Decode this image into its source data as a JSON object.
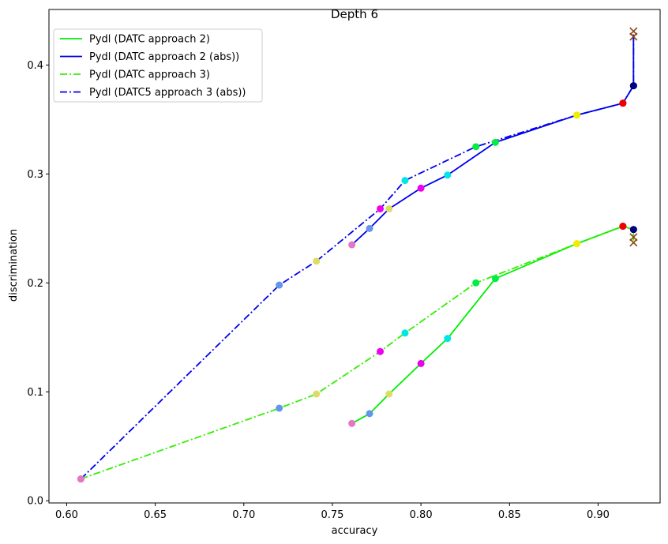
{
  "chart_data": {
    "type": "line",
    "title": "Depth 6",
    "xlabel": "accuracy",
    "ylabel": "discrimination",
    "xlim": [
      0.59,
      0.935
    ],
    "ylim": [
      -0.002,
      0.451
    ],
    "xticks": [
      0.6,
      0.65,
      0.7,
      0.75,
      0.8,
      0.85,
      0.9
    ],
    "xtick_labels": [
      "0.60",
      "0.65",
      "0.70",
      "0.75",
      "0.80",
      "0.85",
      "0.90"
    ],
    "yticks": [
      0.0,
      0.1,
      0.2,
      0.3,
      0.4
    ],
    "ytick_labels": [
      "0.0",
      "0.1",
      "0.2",
      "0.3",
      "0.4"
    ],
    "grid": false,
    "legend_position": "top-left",
    "series": [
      {
        "name": "Pydl (DATC approach 2)",
        "color": "#00ee00",
        "style": "solid",
        "x": [
          0.761,
          0.771,
          0.782,
          0.8,
          0.815,
          0.842,
          0.888,
          0.914,
          0.92
        ],
        "y": [
          0.071,
          0.08,
          0.098,
          0.126,
          0.149,
          0.204,
          0.236,
          0.252,
          0.249
        ],
        "marker_colors": [
          "#e377c2",
          "#6495ed",
          "#dddd66",
          "#ee00ee",
          "#00e5e5",
          "#00ee44",
          "#eeee00",
          "#ee0000",
          "#000080"
        ]
      },
      {
        "name": "Pydl (DATC approach 2 (abs))",
        "color": "#0000ee",
        "style": "solid",
        "x": [
          0.761,
          0.771,
          0.782,
          0.8,
          0.815,
          0.842,
          0.888,
          0.914,
          0.92,
          0.92
        ],
        "y": [
          0.235,
          0.25,
          0.268,
          0.287,
          0.299,
          0.329,
          0.354,
          0.365,
          0.381,
          0.428
        ],
        "marker_colors": [
          "#e377c2",
          "#6495ed",
          "#dddd66",
          "#ee00ee",
          "#00e5e5",
          "#00ee44",
          "#eeee00",
          "#ee0000",
          "#000080",
          "#8b4513"
        ]
      },
      {
        "name": "Pydl (DATC approach 3)",
        "color": "#33ee00",
        "style": "dashdot",
        "x": [
          0.608,
          0.72,
          0.741,
          0.777,
          0.791,
          0.831,
          0.888,
          0.914,
          0.92,
          0.92
        ],
        "y": [
          0.02,
          0.085,
          0.098,
          0.137,
          0.154,
          0.2,
          0.236,
          0.252,
          0.249,
          0.237
        ],
        "marker_colors": [
          "#e377c2",
          "#6495ed",
          "#dddd66",
          "#ee00ee",
          "#00e5e5",
          "#00ee44",
          "#eeee00",
          "#ee0000",
          "#000080",
          "#8b4513"
        ]
      },
      {
        "name": "Pydl (DATC5 approach 3 (abs))",
        "color": "#0000ee",
        "style": "dashdot",
        "x": [
          0.608,
          0.72,
          0.741,
          0.777,
          0.791,
          0.831,
          0.888,
          0.914,
          0.92,
          0.92
        ],
        "y": [
          0.02,
          0.198,
          0.22,
          0.268,
          0.294,
          0.325,
          0.354,
          0.365,
          0.381,
          0.428
        ],
        "marker_colors": [
          "#e377c2",
          "#6495ed",
          "#dddd66",
          "#ee00ee",
          "#00e5e5",
          "#00ee44",
          "#eeee00",
          "#ee0000",
          "#000080",
          "#8b4513"
        ]
      }
    ],
    "x_markers": [
      {
        "x": 0.92,
        "y": 0.431,
        "color": "#8b4513"
      },
      {
        "x": 0.92,
        "y": 0.426,
        "color": "#8b4513"
      },
      {
        "x": 0.92,
        "y": 0.242,
        "color": "#8b4513"
      },
      {
        "x": 0.92,
        "y": 0.237,
        "color": "#8b4513"
      }
    ]
  }
}
